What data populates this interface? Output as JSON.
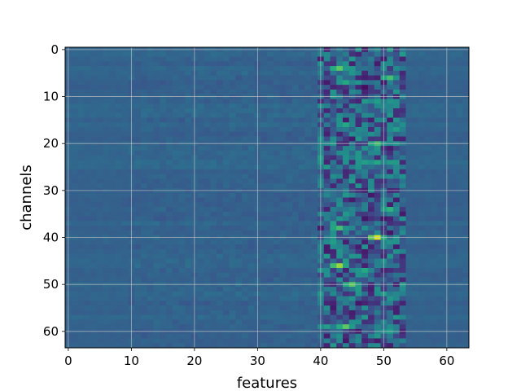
{
  "chart_data": {
    "type": "heatmap",
    "xlabel": "features",
    "ylabel": "channels",
    "rows": 64,
    "cols": 64,
    "xlim": [
      -0.5,
      63.5
    ],
    "ylim": [
      63.5,
      -0.5
    ],
    "x_ticks": [
      0,
      10,
      20,
      30,
      40,
      50,
      60
    ],
    "y_ticks": [
      0,
      10,
      20,
      30,
      40,
      50,
      60
    ],
    "grid": true,
    "colormap": "viridis",
    "colors": {
      "low": "#440154",
      "mid": "#3b528b",
      "base": "#3e5f8f",
      "high": "#fde725"
    },
    "background_value": 0.32,
    "hotspots": [
      {
        "channel": 4,
        "feature": 43,
        "value": 0.75
      },
      {
        "channel": 6,
        "feature": 51,
        "value": 0.7
      },
      {
        "channel": 7,
        "feature": 44,
        "value": 0.6
      },
      {
        "channel": 8,
        "feature": 47,
        "value": 0.05
      },
      {
        "channel": 11,
        "feature": 49,
        "value": 0.55
      },
      {
        "channel": 16,
        "feature": 44,
        "value": 0.6
      },
      {
        "channel": 17,
        "feature": 52,
        "value": 0.55
      },
      {
        "channel": 20,
        "feature": 49,
        "value": 0.7
      },
      {
        "channel": 21,
        "feature": 51,
        "value": 0.1
      },
      {
        "channel": 24,
        "feature": 49,
        "value": 0.6
      },
      {
        "channel": 32,
        "feature": 45,
        "value": 0.1
      },
      {
        "channel": 34,
        "feature": 51,
        "value": 0.65
      },
      {
        "channel": 38,
        "feature": 43,
        "value": 0.7
      },
      {
        "channel": 40,
        "feature": 49,
        "value": 0.95
      },
      {
        "channel": 41,
        "feature": 42,
        "value": 0.55
      },
      {
        "channel": 43,
        "feature": 47,
        "value": 0.1
      },
      {
        "channel": 46,
        "feature": 43,
        "value": 0.85
      },
      {
        "channel": 47,
        "feature": 47,
        "value": 0.6
      },
      {
        "channel": 50,
        "feature": 45,
        "value": 0.75
      },
      {
        "channel": 52,
        "feature": 50,
        "value": 0.55
      },
      {
        "channel": 56,
        "feature": 45,
        "value": 0.1
      },
      {
        "channel": 59,
        "feature": 44,
        "value": 0.75
      },
      {
        "channel": 59,
        "feature": 41,
        "value": 0.55
      },
      {
        "channel": 60,
        "feature": 51,
        "value": 0.55
      },
      {
        "channel": 62,
        "feature": 49,
        "value": 0.1
      }
    ],
    "active_band": {
      "features": [
        40,
        53
      ],
      "variation": 0.22
    }
  }
}
